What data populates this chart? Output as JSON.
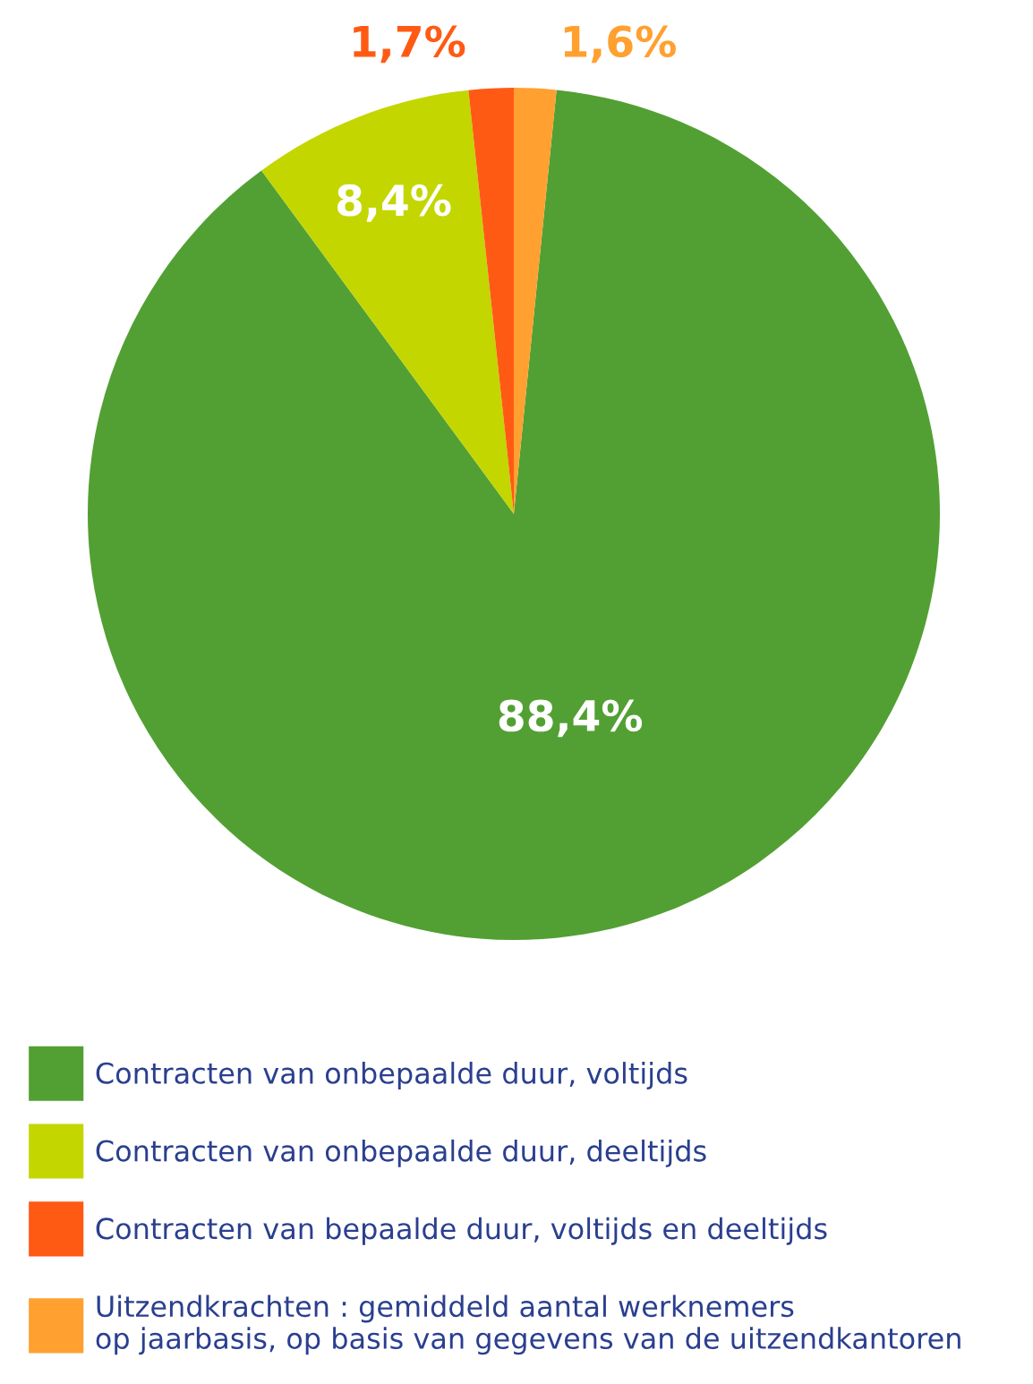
{
  "chart_data": {
    "type": "pie",
    "categories": [
      "Contracten van onbepaalde duur, voltijds",
      "Contracten van onbepaalde duur, deeltijds",
      "Contracten van bepaalde duur, voltijds en deeltijds",
      "Uitzendkrachten : gemiddeld aantal werknemers\nop jaarbasis, op basis van gegevens van de uitzendkantoren"
    ],
    "values": [
      88.4,
      8.4,
      1.7,
      1.6
    ],
    "value_labels": [
      "88,4%",
      "8,4%",
      "1,7%",
      "1,6%"
    ],
    "colors": [
      "#52a033",
      "#c3d600",
      "#ff5a14",
      "#ffa030"
    ],
    "legend": "bottom"
  }
}
